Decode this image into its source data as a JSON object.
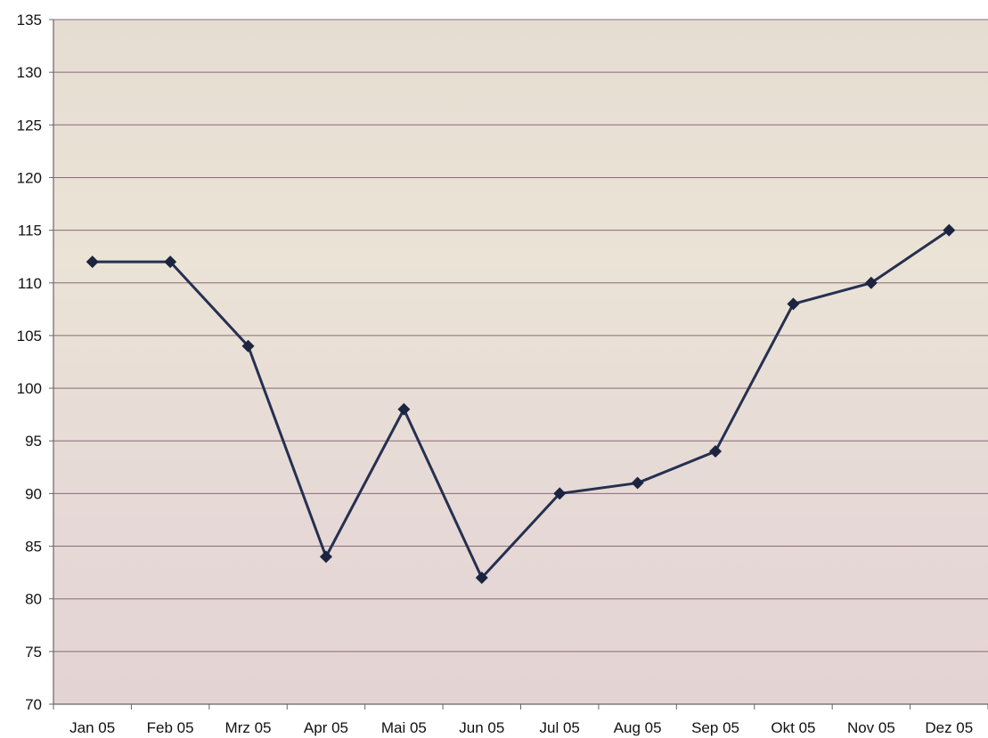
{
  "chart_data": {
    "type": "line",
    "title": "",
    "xlabel": "",
    "ylabel": "",
    "categories": [
      "Jan 05",
      "Feb 05",
      "Mrz 05",
      "Apr 05",
      "Mai 05",
      "Jun 05",
      "Jul 05",
      "Aug 05",
      "Sep 05",
      "Okt 05",
      "Nov 05",
      "Dez 05"
    ],
    "series": [
      {
        "values": [
          112,
          112,
          104,
          84,
          98,
          82,
          90,
          91,
          94,
          108,
          110,
          115
        ]
      }
    ],
    "ylim": [
      70,
      135
    ],
    "yticks": [
      70,
      75,
      80,
      85,
      90,
      95,
      100,
      105,
      110,
      115,
      120,
      125,
      130,
      135
    ],
    "grid": true,
    "legend": "none",
    "marker": "diamond",
    "colors": {
      "line": "#253050",
      "marker": "#1c2440",
      "background": "#e9dfd6",
      "gridline": "#8a6a7a",
      "axis": "#666666"
    }
  }
}
